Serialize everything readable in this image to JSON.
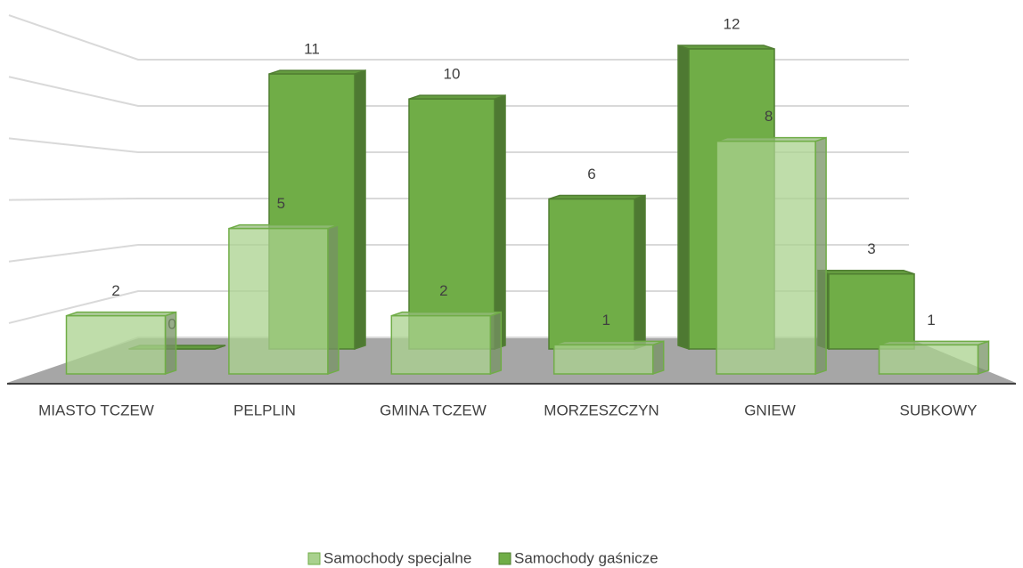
{
  "chart_data": {
    "type": "bar3d",
    "categories": [
      "MIASTO TCZEW",
      "PELPLIN",
      "GMINA TCZEW",
      "MORZESZCZYN",
      "GNIEW",
      "SUBKOWY"
    ],
    "series": [
      {
        "name": "Samochody specjalne",
        "color": "#a9d18e",
        "values": [
          2,
          5,
          2,
          1,
          8,
          1
        ]
      },
      {
        "name": "Samochody gaśnicze",
        "color": "#70ad47",
        "values": [
          0,
          11,
          10,
          6,
          12,
          3
        ]
      }
    ],
    "ylim": [
      0,
      12
    ],
    "yticks": [
      0,
      2,
      4,
      6,
      8,
      10,
      12
    ],
    "grid": true,
    "legend": "bottom"
  }
}
